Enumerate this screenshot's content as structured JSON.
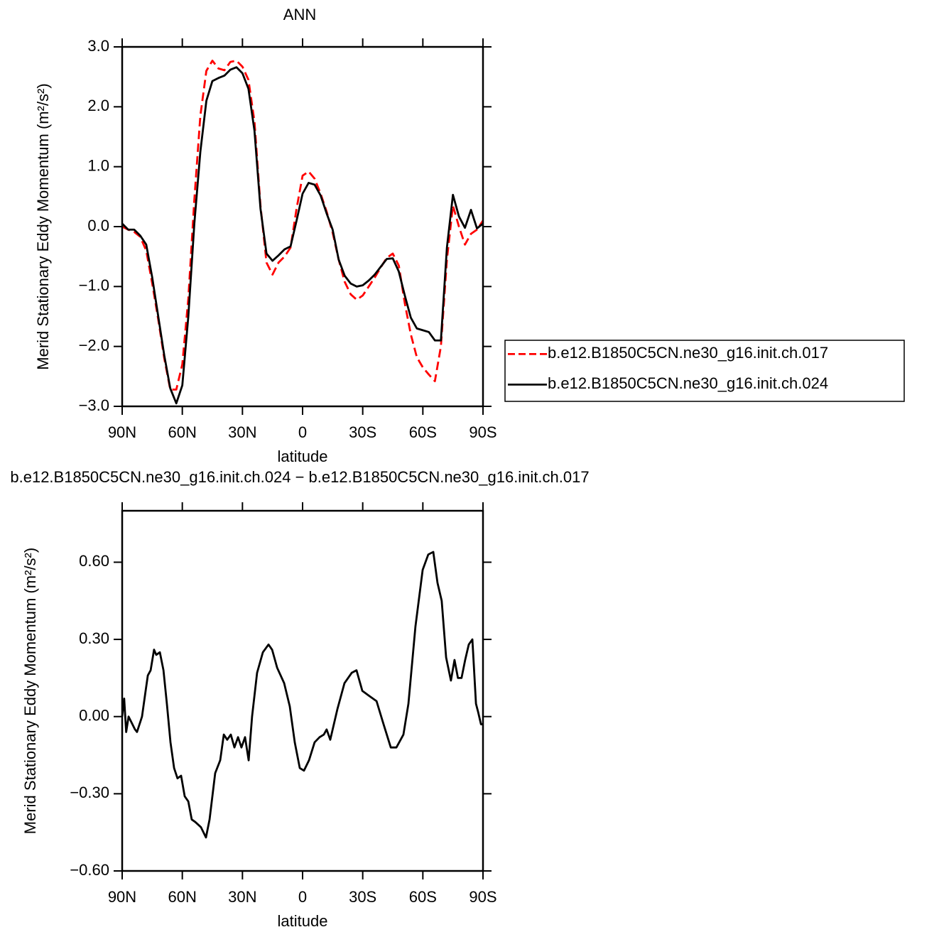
{
  "chart_data": [
    {
      "type": "line",
      "title": "ANN",
      "x_label": "latitude",
      "y_label": "Merid Stationary Eddy Momentum (m²/s²)",
      "x": [
        90,
        87,
        84,
        81,
        78,
        75,
        72,
        69,
        66,
        63,
        60,
        57,
        54,
        51,
        48,
        45,
        42,
        39,
        36,
        33,
        30,
        27,
        24,
        21,
        18,
        15,
        12,
        9,
        6,
        3,
        0,
        -3,
        -6,
        -9,
        -12,
        -15,
        -18,
        -21,
        -24,
        -27,
        -30,
        -33,
        -36,
        -39,
        -42,
        -45,
        -48,
        -51,
        -54,
        -57,
        -60,
        -63,
        -66,
        -69,
        -72,
        -75,
        -78,
        -81,
        -84,
        -87,
        -90
      ],
      "series": [
        {
          "name": "b.e12.B1850C5CN.ne30_g16.init.ch.017",
          "color": "#ff0000",
          "line_style": "dashed",
          "values": [
            0.0,
            -0.05,
            -0.09,
            -0.17,
            -0.4,
            -0.95,
            -1.55,
            -2.2,
            -2.72,
            -2.72,
            -2.3,
            -1.2,
            0.45,
            1.85,
            2.6,
            2.77,
            2.64,
            2.61,
            2.75,
            2.77,
            2.67,
            2.45,
            1.75,
            0.35,
            -0.6,
            -0.8,
            -0.6,
            -0.5,
            -0.35,
            0.3,
            0.85,
            0.92,
            0.8,
            0.55,
            0.25,
            -0.1,
            -0.55,
            -0.92,
            -1.13,
            -1.22,
            -1.15,
            -1.0,
            -0.85,
            -0.68,
            -0.52,
            -0.45,
            -0.65,
            -1.28,
            -1.8,
            -2.18,
            -2.35,
            -2.47,
            -2.58,
            -2.0,
            -0.55,
            0.35,
            0.0,
            -0.3,
            -0.12,
            -0.05,
            0.1
          ]
        },
        {
          "name": "b.e12.B1850C5CN.ne30_g16.init.ch.024",
          "color": "#000000",
          "line_style": "solid",
          "values": [
            0.05,
            -0.05,
            -0.05,
            -0.15,
            -0.3,
            -0.85,
            -1.5,
            -2.15,
            -2.7,
            -2.95,
            -2.65,
            -1.5,
            0.05,
            1.25,
            2.1,
            2.43,
            2.48,
            2.52,
            2.62,
            2.66,
            2.56,
            2.3,
            1.6,
            0.3,
            -0.45,
            -0.57,
            -0.48,
            -0.38,
            -0.33,
            0.1,
            0.55,
            0.73,
            0.7,
            0.52,
            0.22,
            -0.05,
            -0.55,
            -0.82,
            -0.95,
            -1.0,
            -0.98,
            -0.9,
            -0.8,
            -0.67,
            -0.54,
            -0.53,
            -0.75,
            -1.15,
            -1.52,
            -1.7,
            -1.73,
            -1.76,
            -1.9,
            -1.9,
            -0.35,
            0.53,
            0.17,
            -0.02,
            0.28,
            -0.03,
            0.05
          ]
        }
      ],
      "xlim": [
        90,
        -90
      ],
      "xticks": [
        {
          "value": 90,
          "label": "90N"
        },
        {
          "value": 60,
          "label": "60N"
        },
        {
          "value": 30,
          "label": "30N"
        },
        0,
        {
          "value": -30,
          "label": "30S"
        },
        {
          "value": -60,
          "label": "60S"
        },
        {
          "value": -90,
          "label": "90S"
        }
      ],
      "ylim": [
        -3,
        3
      ],
      "yticks": [
        {
          "value": 3,
          "label": "3.0"
        },
        {
          "value": 2,
          "label": "2.0"
        },
        {
          "value": 1,
          "label": "1.0"
        },
        {
          "value": 0,
          "label": "0.0"
        },
        {
          "value": -1,
          "label": "−1.0"
        },
        {
          "value": -2,
          "label": "−2.0"
        },
        {
          "value": -3,
          "label": "−3.0"
        }
      ],
      "legend": "right"
    },
    {
      "type": "line",
      "title": "b.e12.B1850C5CN.ne30_g16.init.ch.024 − b.e12.B1850C5CN.ne30_g16.init.ch.017",
      "x_label": "latitude",
      "y_label": "Merid Stationary Eddy Momentum (m²/s²)",
      "x": [
        90,
        89,
        88,
        86.8,
        83.6,
        82.6,
        80.1,
        78.3,
        77.2,
        75.8,
        74.1,
        73,
        71.2,
        69.4,
        67.7,
        65.9,
        64.1,
        62.4,
        60.6,
        58.8,
        57,
        55.3,
        53.5,
        50.7,
        48.2,
        46.4,
        43.6,
        41.1,
        39.3,
        37.6,
        35.8,
        34,
        32.2,
        30.5,
        28.7,
        26.9,
        25.2,
        22.7,
        19.8,
        17,
        15.2,
        12.7,
        9.2,
        6.4,
        3.9,
        1.4,
        -0.7,
        -3.2,
        -6,
        -8.5,
        -10.6,
        -12,
        -13.8,
        -17.4,
        -20.9,
        -24.5,
        -26.9,
        -29.8,
        -33.3,
        -36.9,
        -40.4,
        -44,
        -46.8,
        -50.3,
        -52.8,
        -56.3,
        -59.9,
        -62.7,
        -65.2,
        -67.3,
        -69.4,
        -71.6,
        -74,
        -75.8,
        -77.5,
        -79.3,
        -81.1,
        -82.9,
        -84.7,
        -86.5,
        -87.5,
        -89,
        -90
      ],
      "values": [
        0,
        0.07,
        -0.06,
        0,
        -0.05,
        -0.06,
        0,
        0.1,
        0.16,
        0.18,
        0.26,
        0.24,
        0.25,
        0.18,
        0.05,
        -0.1,
        -0.2,
        -0.24,
        -0.23,
        -0.31,
        -0.33,
        -0.4,
        -0.41,
        -0.43,
        -0.47,
        -0.4,
        -0.22,
        -0.17,
        -0.07,
        -0.09,
        -0.07,
        -0.12,
        -0.08,
        -0.12,
        -0.08,
        -0.17,
        0,
        0.17,
        0.25,
        0.28,
        0.26,
        0.19,
        0.13,
        0.04,
        -0.1,
        -0.2,
        -0.21,
        -0.17,
        -0.1,
        -0.08,
        -0.07,
        -0.05,
        -0.09,
        0.03,
        0.13,
        0.17,
        0.18,
        0.1,
        0.08,
        0.06,
        -0.03,
        -0.12,
        -0.12,
        -0.07,
        0.05,
        0.35,
        0.57,
        0.63,
        0.64,
        0.52,
        0.45,
        0.23,
        0.14,
        0.22,
        0.15,
        0.15,
        0.22,
        0.28,
        0.3,
        0.05,
        0.02,
        -0.03,
        -0.03
      ],
      "color": "#000000",
      "xlim": [
        90,
        -90
      ],
      "xticks": [
        {
          "value": 90,
          "label": "90N"
        },
        {
          "value": 60,
          "label": "60N"
        },
        {
          "value": 30,
          "label": "30N"
        },
        0,
        {
          "value": -30,
          "label": "30S"
        },
        {
          "value": -60,
          "label": "60S"
        },
        {
          "value": -90,
          "label": "90S"
        }
      ],
      "ylim": [
        -0.6,
        0.8
      ],
      "yticks": [
        {
          "value": -0.6,
          "label": "−0.60"
        },
        {
          "value": -0.3,
          "label": "−0.30"
        },
        {
          "value": 0,
          "label": "0.00"
        },
        {
          "value": 0.3,
          "label": "0.30"
        },
        {
          "value": 0.6,
          "label": "0.60"
        }
      ]
    }
  ]
}
